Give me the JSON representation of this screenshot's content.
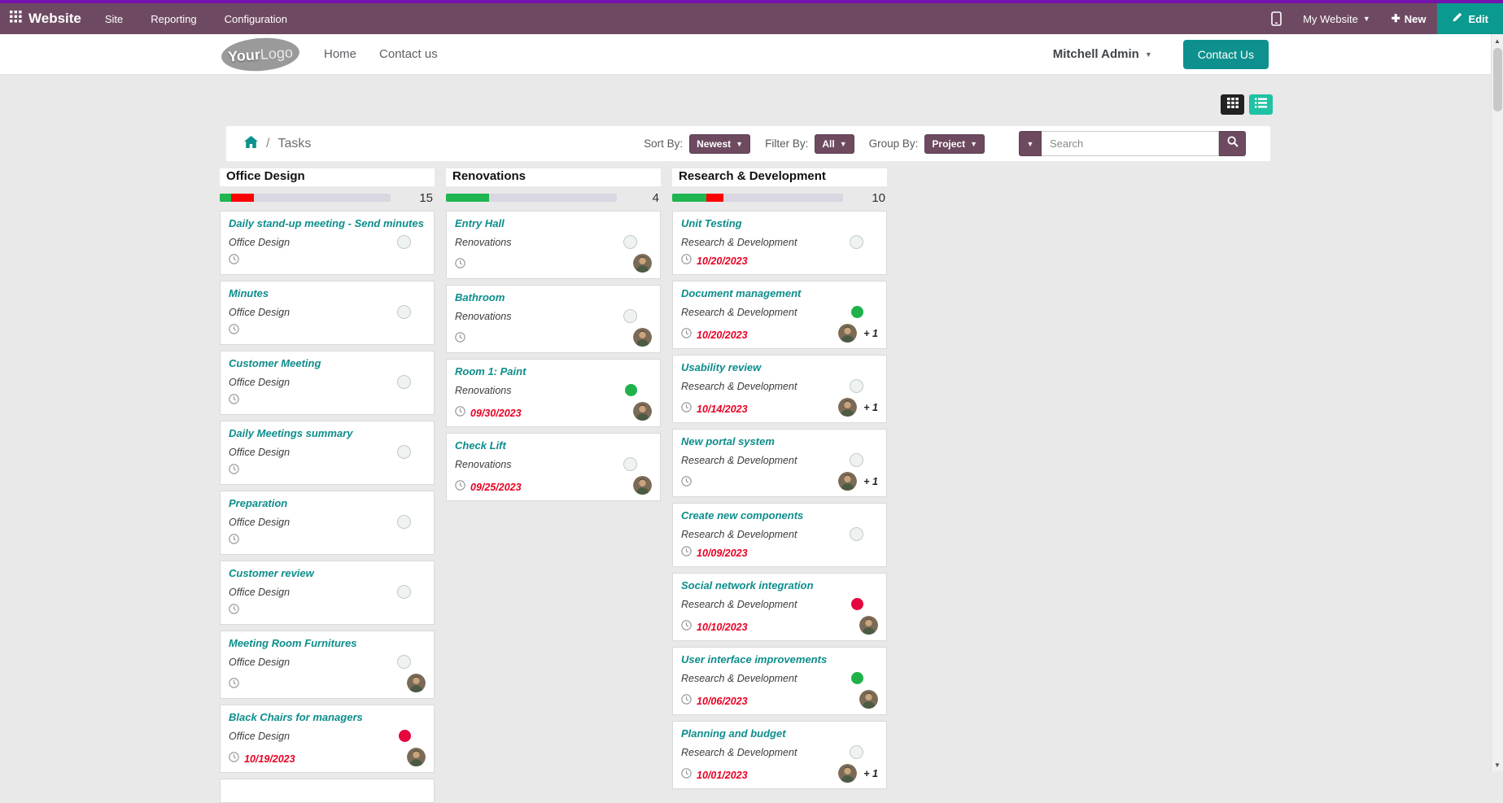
{
  "colors": {
    "accent_teal": "#0e918e",
    "brand_purple": "#6e4a62",
    "top_stripe": "#7612ad",
    "button_purple": "#6d4a5f",
    "status_green": "#20b24a",
    "status_red": "#e4063f",
    "progress_green": "#1fb551",
    "progress_red": "#fe0000",
    "date_red": "#e60023",
    "card_title_teal": "#0c8d8b",
    "list_toggle_teal": "#1fc3a3"
  },
  "topbar": {
    "brand": "Website",
    "menus": [
      "Site",
      "Reporting",
      "Configuration"
    ],
    "my_website": "My Website",
    "new_label": "New",
    "edit_label": "Edit"
  },
  "site_header": {
    "logo_part1": "Your",
    "logo_part2": "Logo",
    "nav": [
      "Home",
      "Contact us"
    ],
    "user_name": "Mitchell Admin",
    "contact_button": "Contact Us"
  },
  "toolbar": {
    "breadcrumb_current": "Tasks",
    "sort_by_label": "Sort By:",
    "sort_by_value": "Newest",
    "filter_by_label": "Filter By:",
    "filter_by_value": "All",
    "group_by_label": "Group By:",
    "group_by_value": "Project",
    "search_placeholder": "Search"
  },
  "board": {
    "columns": [
      {
        "name": "Office Design",
        "count": "15",
        "progress": {
          "green_pct": 6.7,
          "red_pct": 13.3
        },
        "cards": [
          {
            "title": "Daily stand-up meeting - Send minutes",
            "project": "Office Design",
            "status": "none",
            "clock": true
          },
          {
            "title": "Minutes",
            "project": "Office Design",
            "status": "none",
            "clock": true
          },
          {
            "title": "Customer Meeting",
            "project": "Office Design",
            "status": "none",
            "clock": true
          },
          {
            "title": "Daily Meetings summary",
            "project": "Office Design",
            "status": "none",
            "clock": true
          },
          {
            "title": "Preparation",
            "project": "Office Design",
            "status": "none",
            "clock": true
          },
          {
            "title": "Customer review",
            "project": "Office Design",
            "status": "none",
            "clock": true
          },
          {
            "title": "Meeting Room Furnitures",
            "project": "Office Design",
            "status": "none",
            "clock": true,
            "avatar": true
          },
          {
            "title": "Black Chairs for managers",
            "project": "Office Design",
            "status": "red",
            "clock": true,
            "date": "10/19/2023",
            "avatar": true
          },
          {
            "partial": true
          }
        ]
      },
      {
        "name": "Renovations",
        "count": "4",
        "progress": {
          "green_pct": 25,
          "red_pct": 0
        },
        "cards": [
          {
            "title": "Entry Hall",
            "project": "Renovations",
            "status": "none",
            "clock": true,
            "avatar": true
          },
          {
            "title": "Bathroom",
            "project": "Renovations",
            "status": "none",
            "clock": true,
            "avatar": true
          },
          {
            "title": "Room 1: Paint",
            "project": "Renovations",
            "status": "green",
            "clock": true,
            "date": "09/30/2023",
            "avatar": true
          },
          {
            "title": "Check Lift",
            "project": "Renovations",
            "status": "none",
            "clock": true,
            "date": "09/25/2023",
            "avatar": true
          }
        ]
      },
      {
        "name": "Research & Development",
        "count": "10",
        "progress": {
          "green_pct": 20,
          "red_pct": 10
        },
        "cards": [
          {
            "title": "Unit Testing",
            "project": "Research & Development",
            "status": "none",
            "clock": true,
            "date": "10/20/2023"
          },
          {
            "title": "Document management",
            "project": "Research & Development",
            "status": "green",
            "clock": true,
            "date": "10/20/2023",
            "avatar": true,
            "plus": "+ 1"
          },
          {
            "title": "Usability review",
            "project": "Research & Development",
            "status": "none",
            "clock": true,
            "date": "10/14/2023",
            "avatar": true,
            "plus": "+ 1"
          },
          {
            "title": "New portal system",
            "project": "Research & Development",
            "status": "none",
            "clock": true,
            "avatar": true,
            "plus": "+ 1"
          },
          {
            "title": "Create new components",
            "project": "Research & Development",
            "status": "none",
            "clock": true,
            "date": "10/09/2023"
          },
          {
            "title": "Social network integration",
            "project": "Research & Development",
            "status": "red",
            "clock": true,
            "date": "10/10/2023",
            "avatar": true
          },
          {
            "title": "User interface improvements",
            "project": "Research & Development",
            "status": "green",
            "clock": true,
            "date": "10/06/2023",
            "avatar": true
          },
          {
            "title": "Planning and budget",
            "project": "Research & Development",
            "status": "none",
            "clock": true,
            "date": "10/01/2023",
            "avatar": true,
            "plus": "+ 1"
          }
        ]
      }
    ]
  }
}
